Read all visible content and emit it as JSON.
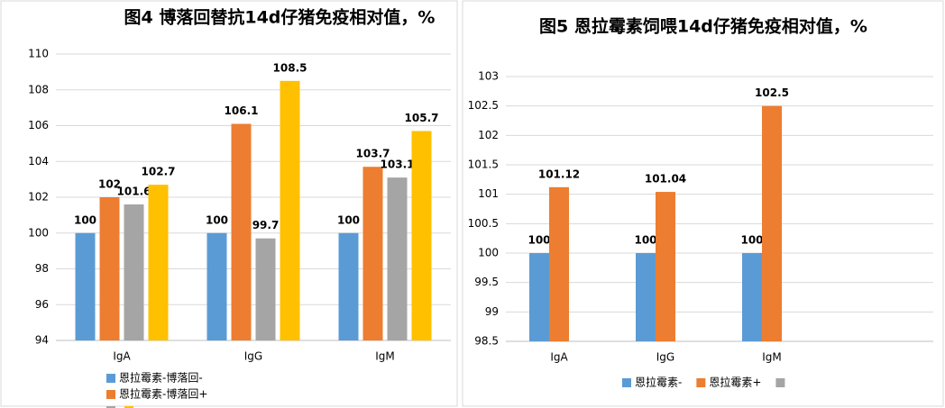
{
  "chart_data": [
    {
      "type": "bar",
      "title": "图4 博落回替抗14d仔猪免疫相对值，%",
      "categories": [
        "IgA",
        "IgG",
        "IgM"
      ],
      "series": [
        {
          "name": "恩拉霉素-博落回-",
          "color": "#5b9bd5",
          "values": [
            100,
            100,
            100
          ]
        },
        {
          "name": "恩拉霉素-博落回+",
          "color": "#ed7d31",
          "values": [
            102,
            106.1,
            103.7
          ]
        },
        {
          "color": "#a5a5a5",
          "values": [
            101.6,
            99.7,
            103.1
          ]
        },
        {
          "color": "#ffc000",
          "values": [
            102.7,
            108.5,
            105.7
          ]
        }
      ],
      "ylim": [
        94,
        110
      ],
      "yticks": [
        94,
        96,
        98,
        100,
        102,
        104,
        106,
        108,
        110
      ],
      "grid": true,
      "legend": "bottom"
    },
    {
      "type": "bar",
      "title": "图5 恩拉霉素饲喂14d仔猪免疫相对值，%",
      "categories": [
        "IgA",
        "IgG",
        "IgM"
      ],
      "series": [
        {
          "name": "恩拉霉素-",
          "color": "#5b9bd5",
          "values": [
            100,
            100,
            100
          ]
        },
        {
          "name": "恩拉霉素+",
          "color": "#ed7d31",
          "values": [
            101.12,
            101.04,
            102.5
          ]
        },
        {
          "color": "#a5a5a5",
          "values": [
            null,
            null,
            null
          ]
        }
      ],
      "ylim": [
        98.5,
        103
      ],
      "yticks": [
        98.5,
        99,
        99.5,
        100,
        100.5,
        101,
        101.5,
        102,
        102.5,
        103
      ],
      "grid": true,
      "legend": "bottom"
    }
  ]
}
